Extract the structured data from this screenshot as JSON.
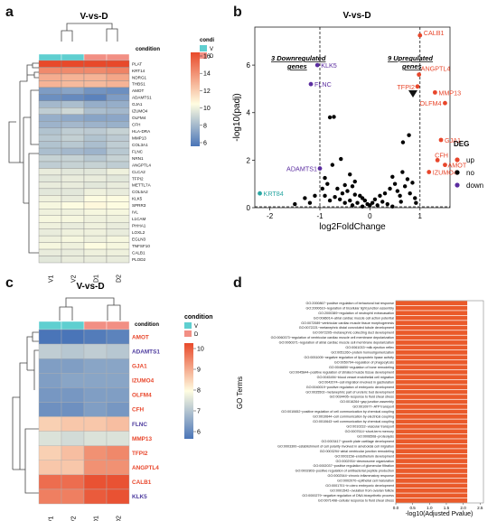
{
  "colors": {
    "heat_low": "#4a75b8",
    "heat_mid": "#fffde1",
    "heat_high": "#e8492a",
    "cond_V": "#5fcfd0",
    "cond_D": "#f28f84",
    "up": "#e8462b",
    "no": "#000000",
    "down": "#5b2da0",
    "bar": "#ea5a2a",
    "red_label": "#e8462b",
    "blue_label": "#4c3a9e"
  },
  "panels": {
    "a": {
      "letter": "a",
      "title": "V-vs-D",
      "legend_title": "condi",
      "annotation_label": "condition",
      "legend_items": [
        "V",
        "D"
      ],
      "colorbar_ticks": [
        "16",
        "14",
        "12",
        "10",
        "8",
        "6"
      ],
      "columns": [
        "V1",
        "V2",
        "D1",
        "D2"
      ],
      "column_groups": [
        "V",
        "V",
        "D",
        "D"
      ],
      "rows": [
        "PLAT",
        "KRT14",
        "NDRG1",
        "THBS1",
        "AMOT",
        "ADAMTS1",
        "GJA1",
        "IZUMO4",
        "OLFM4",
        "CFH",
        "HLA-DRA",
        "MMP13",
        "COL3A1",
        "FLNC",
        "NRN1",
        "ANGPTL4",
        "CLCA2",
        "TFPI2",
        "METTL7A",
        "COL5A2",
        "KLK5",
        "SPRR3",
        "IVL",
        "L1CAM",
        "PHHA1",
        "LOXL2",
        "EGLN3",
        "TNFSF10",
        "CALB1",
        "PLOD2"
      ]
    },
    "b": {
      "letter": "b",
      "title": "V-vs-D",
      "annot_down_line1": "3 Downregulated",
      "annot_down_line2": "genes",
      "annot_up_line1": "9 Upregulated",
      "annot_up_line2": "genes",
      "legend_title": "DEG",
      "legend_items": [
        "up",
        "no",
        "down"
      ],
      "gene_labels": [
        "CALB1",
        "KLK5",
        "FLNC",
        "ANGPTL4",
        "TFPI2",
        "MMP13",
        "OLFM4",
        "GJA1",
        "CFH",
        "AMOT",
        "IZUMO4",
        "ADAMTS1",
        "KRT84"
      ]
    },
    "c": {
      "letter": "c",
      "title": "V-vs-D",
      "legend_title": "condition",
      "annotation_label": "condition",
      "legend_items": [
        "V",
        "D"
      ],
      "colorbar_ticks": [
        "10",
        "9",
        "8",
        "7",
        "6"
      ],
      "columns": [
        "V1",
        "V2",
        "D1",
        "D2"
      ],
      "column_groups": [
        "V",
        "V",
        "D",
        "D"
      ],
      "rows": [
        "AMOT",
        "ADAMTS1",
        "GJA1",
        "IZUMO4",
        "OLFM4",
        "CFH",
        "FLNC",
        "MMP13",
        "TFPI2",
        "ANGPTL4",
        "CALB1",
        "KLK5"
      ],
      "row_label_colors": [
        "red",
        "blue",
        "red",
        "red",
        "red",
        "red",
        "blue",
        "red",
        "red",
        "red",
        "red",
        "blue"
      ]
    },
    "d": {
      "letter": "d",
      "ylabel": "GO Terms",
      "xlabel": "-log10(Adjusted Pvalue)",
      "xticks": [
        "0.0",
        "0.5",
        "1.0",
        "1.5",
        "2.0",
        "2.5"
      ],
      "terms": [
        "GO:2000867~positive regulation of behavioral bat response",
        "GO:2000610~regulation of bicellular tight junction assembly",
        "GO:2000389~regulation of neutrophil extravasation",
        "GO:0086014~atrial cardiac muscle cell action potential",
        "GO:0072089~ventricular cardiac muscle tissue morphogenesis",
        "GO:0072221~metanephric distal convoluted tubule development",
        "GO:0072205~metanephric collecting duct development",
        "GO:0060373~regulation of ventricular cardiac muscle cell membrane depolarization",
        "GO:0060371~regulation of atrial cardiac muscle cell membrane depolarization",
        "GO:0061033~milk ejection reflex",
        "GO:0051260~protein homooligomerization",
        "GO:0051005~negative regulation of lipoprotein lipase activity",
        "GO:0050794~regulation of phagocytosis",
        "GO:0046850~regulation of bone remodeling",
        "GO:0045844~positive regulation of striated muscle tissue development",
        "GO:0045494~blood vessel endothelial cell migration",
        "GO:0042074~cell migration involved in gastrulation",
        "GO:0040019~positive regulation of embryonic development",
        "GO:0035502~metanephric part of ureteric bud development",
        "GO:0034405~response to fluid shear stress",
        "GO:0016264~gap junction assembly",
        "GO:0010977~ATP transport",
        "GO:0010652~positive regulation of cell communication by chemical coupling",
        "GO:0010644~cell communication by electrical coupling",
        "GO:0010643~cell communication by chemical coupling",
        "GO:0010232~vascular transport",
        "GO:0007614~short-term memory",
        "GO:0006508~proteolysis",
        "GO:0003417~growth plate cartilage development",
        "GO:0003300~establishment of cell polarity involved in ameboidal cell migration",
        "GO:0003294~atrial ventricular junction remodeling",
        "GO:0003158~endothelium development",
        "GO:0002934~desmosome organization",
        "GO:0002037~positive regulation of glomerular filtration",
        "GO:0002803~positive regulation of antibacterial peptide production",
        "GO:0002544~chronic inflammatory response",
        "GO:0002070~epithelial cell maturation",
        "GO:0001701~in utero embryonic development",
        "GO:0001542~ovulation from ovarian follicle",
        "GO:0000279~negative regulation of DNA biosynthetic process",
        "GO:0071498~cellular response to fluid shear stress"
      ]
    }
  },
  "chart_data": [
    {
      "type": "heatmap",
      "panel": "a",
      "title": "V-vs-D",
      "x": [
        "V1",
        "V2",
        "D1",
        "D2"
      ],
      "y": [
        "PLAT",
        "KRT14",
        "NDRG1",
        "THBS1",
        "AMOT",
        "ADAMTS1",
        "GJA1",
        "IZUMO4",
        "OLFM4",
        "CFH",
        "HLA-DRA",
        "MMP13",
        "COL3A1",
        "FLNC",
        "NRN1",
        "ANGPTL4",
        "CLCA2",
        "TFPI2",
        "METTL7A",
        "COL5A2",
        "KLK5",
        "SPRR3",
        "IVL",
        "L1CAM",
        "PHHA1",
        "LOXL2",
        "EGLN3",
        "TNFSF10",
        "CALB1",
        "PLOD2"
      ],
      "values": [
        [
          16.5,
          16.5,
          16.5,
          16.6
        ],
        [
          14.6,
          14.6,
          14.6,
          14.8
        ],
        [
          13.6,
          13.4,
          13.4,
          13.8
        ],
        [
          13.4,
          13.2,
          13.2,
          13.4
        ],
        [
          7.5,
          7.8,
          7.2,
          7.0
        ],
        [
          7.0,
          6.8,
          6.5,
          7.5
        ],
        [
          8.6,
          8.8,
          8.2,
          8.2
        ],
        [
          9.4,
          9.8,
          8.8,
          8.6
        ],
        [
          8.2,
          8.0,
          7.8,
          7.9
        ],
        [
          8.4,
          8.6,
          8.4,
          8.3
        ],
        [
          9.0,
          9.4,
          9.3,
          9.6
        ],
        [
          9.2,
          9.5,
          9.0,
          9.3
        ],
        [
          9.0,
          9.2,
          8.8,
          9.4
        ],
        [
          8.8,
          8.6,
          8.4,
          9.2
        ],
        [
          9.6,
          9.6,
          9.2,
          9.6
        ],
        [
          9.4,
          9.6,
          9.6,
          9.4
        ],
        [
          10.6,
          10.4,
          10.4,
          10.8
        ],
        [
          10.4,
          10.6,
          10.6,
          10.4
        ],
        [
          10.6,
          10.6,
          10.4,
          10.6
        ],
        [
          10.4,
          10.4,
          10.8,
          10.6
        ],
        [
          10.8,
          10.6,
          11.2,
          11.2
        ],
        [
          11.0,
          11.2,
          11.4,
          11.2
        ],
        [
          10.8,
          10.8,
          11.0,
          11.0
        ],
        [
          11.0,
          11.0,
          10.8,
          10.8
        ],
        [
          10.8,
          10.6,
          10.8,
          10.6
        ],
        [
          10.6,
          10.8,
          10.8,
          10.6
        ],
        [
          10.8,
          11.0,
          10.8,
          11.0
        ],
        [
          11.0,
          10.8,
          11.2,
          11.0
        ],
        [
          10.6,
          10.6,
          10.8,
          10.8
        ],
        [
          10.4,
          10.6,
          10.6,
          10.6
        ]
      ],
      "zlim": [
        6,
        16.5
      ],
      "legend": [
        "V",
        "D"
      ]
    },
    {
      "type": "scatter",
      "panel": "b",
      "title": "V-vs-D",
      "xlabel": "log2FoldChange",
      "ylabel": "-log10(padj)",
      "xlim": [
        -2.3,
        1.6
      ],
      "ylim": [
        0,
        7.6
      ],
      "xticks": [
        -2,
        -1,
        0,
        1
      ],
      "yticks": [
        0,
        2,
        4,
        6
      ],
      "vlines": [
        -1,
        1
      ],
      "hline": 0,
      "legend_title": "DEG",
      "legend": [
        "up",
        "no",
        "down"
      ],
      "up": [
        {
          "label": "CALB1",
          "x": 1.0,
          "y": 7.25
        },
        {
          "label": "ANGPTL4",
          "x": 0.98,
          "y": 5.6
        },
        {
          "label": "TFPI2",
          "x": 0.95,
          "y": 5.1
        },
        {
          "label": "MMP13",
          "x": 1.3,
          "y": 4.85
        },
        {
          "label": "OLFM4",
          "x": 1.5,
          "y": 4.4
        },
        {
          "label": "GJA1",
          "x": 1.42,
          "y": 2.85
        },
        {
          "label": "CFH",
          "x": 1.35,
          "y": 2.0
        },
        {
          "label": "AMOT",
          "x": 1.5,
          "y": 1.8
        },
        {
          "label": "IZUMO4",
          "x": 1.18,
          "y": 1.5
        }
      ],
      "down": [
        {
          "label": "KLK5",
          "x": -1.05,
          "y": 6.0
        },
        {
          "label": "FLNC",
          "x": -1.18,
          "y": 5.2
        },
        {
          "label": "ADAMTS1",
          "x": -1.0,
          "y": 1.65
        }
      ],
      "labeled_no": [
        {
          "label": "KRT84",
          "x": -2.2,
          "y": 0.6
        }
      ],
      "no": [
        [
          -0.8,
          3.8
        ],
        [
          -0.72,
          3.82
        ],
        [
          -0.58,
          2.05
        ],
        [
          -0.75,
          1.8
        ],
        [
          -0.4,
          1.4
        ],
        [
          -0.3,
          1.1
        ],
        [
          -0.5,
          0.95
        ],
        [
          -0.9,
          1.25
        ],
        [
          -0.85,
          1.0
        ],
        [
          -0.65,
          0.8
        ],
        [
          -0.55,
          0.6
        ],
        [
          -0.45,
          0.7
        ],
        [
          -0.3,
          0.55
        ],
        [
          -0.2,
          0.5
        ],
        [
          -0.15,
          0.4
        ],
        [
          -0.1,
          0.3
        ],
        [
          -0.7,
          0.45
        ],
        [
          -0.9,
          0.5
        ],
        [
          -0.6,
          0.35
        ],
        [
          -0.4,
          0.3
        ],
        [
          -0.25,
          0.2
        ],
        [
          -0.05,
          0.15
        ],
        [
          0.0,
          0.1
        ],
        [
          0.05,
          0.2
        ],
        [
          0.1,
          0.35
        ],
        [
          0.2,
          0.5
        ],
        [
          0.3,
          0.6
        ],
        [
          0.4,
          0.8
        ],
        [
          0.5,
          1.0
        ],
        [
          0.55,
          0.7
        ],
        [
          0.6,
          0.5
        ],
        [
          0.7,
          0.9
        ],
        [
          0.75,
          1.2
        ],
        [
          0.8,
          0.6
        ],
        [
          0.85,
          1.05
        ],
        [
          0.9,
          0.4
        ],
        [
          0.78,
          3.05
        ],
        [
          0.66,
          2.75
        ],
        [
          0.65,
          1.5
        ],
        [
          0.45,
          1.3
        ],
        [
          -0.35,
          0.9
        ],
        [
          -0.95,
          0.8
        ],
        [
          -0.8,
          0.3
        ],
        [
          -1.1,
          0.5
        ],
        [
          -1.3,
          0.4
        ],
        [
          -1.2,
          0.2
        ],
        [
          -1.5,
          0.15
        ],
        [
          0.15,
          0.1
        ],
        [
          0.25,
          0.25
        ],
        [
          0.35,
          0.15
        ],
        [
          0.45,
          0.05
        ],
        [
          -0.15,
          0.05
        ],
        [
          -0.35,
          0.1
        ],
        [
          -0.5,
          0.2
        ],
        [
          0.62,
          0.25
        ],
        [
          0.92,
          0.2
        ]
      ]
    },
    {
      "type": "heatmap",
      "panel": "c",
      "title": "V-vs-D",
      "x": [
        "V1",
        "V2",
        "D1",
        "D2"
      ],
      "y": [
        "AMOT",
        "ADAMTS1",
        "GJA1",
        "IZUMO4",
        "OLFM4",
        "CFH",
        "FLNC",
        "MMP13",
        "TFPI2",
        "ANGPTL4",
        "CALB1",
        "KLK5"
      ],
      "values": [
        [
          6.0,
          6.0,
          6.1,
          6.2
        ],
        [
          7.3,
          7.2,
          7.3,
          7.2
        ],
        [
          6.6,
          6.6,
          6.7,
          6.7
        ],
        [
          6.6,
          6.7,
          6.7,
          6.7
        ],
        [
          6.5,
          6.5,
          6.6,
          6.6
        ],
        [
          6.4,
          6.4,
          6.6,
          6.5
        ],
        [
          8.5,
          8.6,
          8.6,
          8.7
        ],
        [
          7.6,
          7.5,
          7.6,
          7.6
        ],
        [
          8.5,
          8.7,
          9.2,
          9.3
        ],
        [
          8.6,
          8.6,
          9.2,
          9.2
        ],
        [
          9.6,
          9.6,
          9.9,
          9.9
        ],
        [
          9.4,
          9.4,
          9.8,
          9.9
        ]
      ],
      "zlim": [
        6,
        10
      ],
      "legend": [
        "V",
        "D"
      ]
    },
    {
      "type": "bar",
      "panel": "d",
      "orientation": "horizontal",
      "xlabel": "-log10(Adjusted Pvalue)",
      "ylabel": "GO Terms",
      "xlim": [
        0,
        2.6
      ],
      "xticks": [
        0.0,
        0.5,
        1.0,
        1.5,
        2.0,
        2.5
      ],
      "values": [
        2.12,
        2.12,
        2.12,
        2.12,
        2.12,
        2.12,
        2.12,
        2.12,
        2.12,
        2.12,
        2.12,
        2.12,
        2.12,
        2.12,
        2.12,
        2.12,
        2.12,
        2.12,
        2.12,
        2.12,
        2.12,
        2.12,
        2.12,
        2.12,
        2.12,
        2.12,
        2.12,
        2.12,
        2.12,
        2.12,
        2.12,
        2.12,
        2.12,
        2.12,
        2.12,
        2.12,
        2.12,
        2.12,
        2.12,
        2.12,
        2.12
      ]
    }
  ]
}
